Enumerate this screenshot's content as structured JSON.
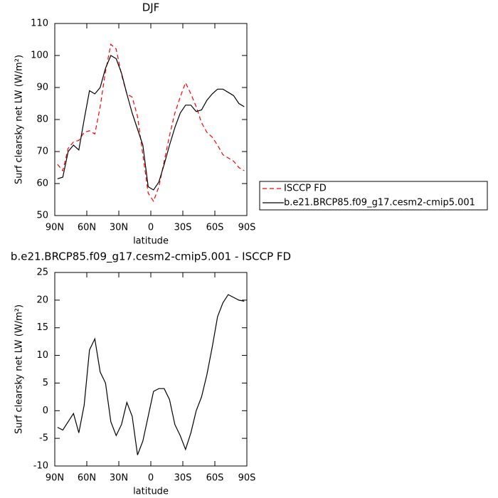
{
  "chart_data": [
    {
      "type": "line",
      "title": "DJF",
      "xlabel": "latitude",
      "ylabel": "Surf clearsky net LW (W/m²)",
      "x": [
        87.5,
        82.5,
        77.5,
        72.5,
        67.5,
        62.5,
        57.5,
        52.5,
        47.5,
        42.5,
        37.5,
        32.5,
        27.5,
        22.5,
        17.5,
        12.5,
        7.5,
        2.5,
        -2.5,
        -7.5,
        -12.5,
        -17.5,
        -22.5,
        -27.5,
        -32.5,
        -37.5,
        -42.5,
        -47.5,
        -52.5,
        -57.5,
        -62.5,
        -67.5,
        -72.5,
        -77.5,
        -82.5,
        -87.5
      ],
      "series": [
        {
          "name": "ISCCP FD",
          "color": "#ff0000",
          "style": "dashed",
          "values": [
            66,
            64,
            71,
            73,
            73.5,
            76,
            76.5,
            75.5,
            84,
            95,
            103.5,
            102,
            94,
            88,
            87,
            81,
            69,
            57,
            54.5,
            59,
            67,
            75,
            82,
            87,
            91.5,
            88,
            84,
            79,
            76,
            74.5,
            72,
            69,
            68,
            67,
            65,
            64
          ]
        },
        {
          "name": "b.e21.BRCP85.f09_g17.cesm2-cmip5.001",
          "color": "#000000",
          "style": "solid",
          "values": [
            61.5,
            62,
            70,
            72,
            70.5,
            80,
            89,
            88,
            90,
            96,
            100,
            99,
            94.5,
            88,
            82,
            77,
            72,
            59,
            58,
            60.5,
            66,
            72,
            77.5,
            82,
            84.5,
            84.5,
            82.5,
            83,
            86,
            88,
            89.5,
            89.5,
            88.5,
            87.5,
            85,
            84
          ]
        }
      ],
      "xlim": [
        90,
        -90
      ],
      "xticks": [
        {
          "value": 90,
          "label": "90N"
        },
        {
          "value": 60,
          "label": "60N"
        },
        {
          "value": 30,
          "label": "30N"
        },
        0,
        {
          "value": -30,
          "label": "30S"
        },
        {
          "value": -60,
          "label": "60S"
        },
        {
          "value": -90,
          "label": "90S"
        }
      ],
      "ylim": [
        50,
        110
      ],
      "yticks": [
        50,
        60,
        70,
        80,
        90,
        100,
        110
      ],
      "legend": "right"
    },
    {
      "type": "line",
      "title": "b.e21.BRCP85.f09_g17.cesm2-cmip5.001 - ISCCP FD",
      "xlabel": "latitude",
      "ylabel": "Surf clearsky net LW (W/m²)",
      "x": [
        87.5,
        82.5,
        77.5,
        72.5,
        67.5,
        62.5,
        57.5,
        52.5,
        47.5,
        42.5,
        37.5,
        32.5,
        27.5,
        22.5,
        17.5,
        12.5,
        7.5,
        2.5,
        -2.5,
        -7.5,
        -12.5,
        -17.5,
        -22.5,
        -27.5,
        -32.5,
        -37.5,
        -42.5,
        -47.5,
        -52.5,
        -57.5,
        -62.5,
        -67.5,
        -72.5,
        -77.5,
        -82.5,
        -87.5
      ],
      "series": [
        {
          "color": "#000000",
          "style": "solid",
          "values": [
            -3,
            -3.5,
            -2,
            -0.5,
            -4,
            1,
            11,
            13,
            7,
            5,
            -2,
            -4.5,
            -2.5,
            1.5,
            -1,
            -8,
            -5.5,
            -1,
            3.5,
            4,
            4,
            2,
            -2.5,
            -4.5,
            -7,
            -4,
            0,
            2.5,
            6.5,
            11.5,
            17,
            19.5,
            21,
            20.5,
            20,
            19.8
          ]
        }
      ],
      "xlim": [
        90,
        -90
      ],
      "xticks": [
        {
          "value": 90,
          "label": "90N"
        },
        {
          "value": 60,
          "label": "60N"
        },
        {
          "value": 30,
          "label": "30N"
        },
        0,
        {
          "value": -30,
          "label": "30S"
        },
        {
          "value": -60,
          "label": "60S"
        },
        {
          "value": -90,
          "label": "90S"
        }
      ],
      "ylim": [
        -10,
        25
      ],
      "yticks": [
        -10,
        -5,
        0,
        5,
        10,
        15,
        20,
        25
      ]
    }
  ]
}
